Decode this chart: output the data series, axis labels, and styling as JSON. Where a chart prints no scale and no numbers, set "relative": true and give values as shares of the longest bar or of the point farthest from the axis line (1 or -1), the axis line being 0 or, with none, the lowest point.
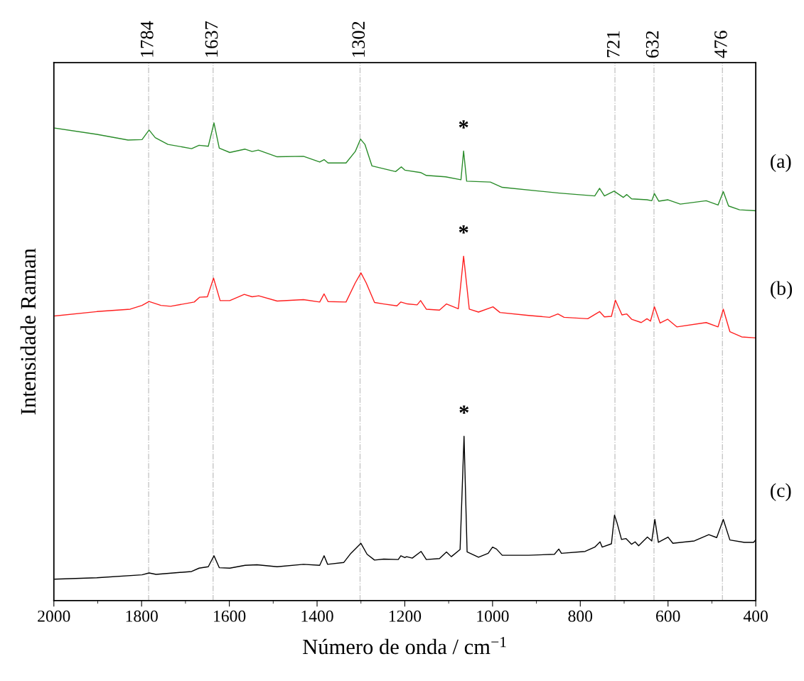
{
  "chart_data": {
    "type": "line",
    "relative": true,
    "xlabel": "Número de onda / cm$^{−1}$",
    "ylabel": "Intensidade Raman",
    "xlim": [
      2000,
      400
    ],
    "xticks": [
      2000,
      1800,
      1600,
      1400,
      1200,
      1000,
      800,
      600,
      400
    ],
    "tick_labels": "x",
    "grid": false,
    "legend": false,
    "marker": "none",
    "line_style": "solid",
    "ref_lines": [
      {
        "axis": "x",
        "value": 1784,
        "label": "1784",
        "color": "#c0c0c0",
        "line_style": "dashdot"
      },
      {
        "axis": "x",
        "value": 1637,
        "label": "1637",
        "color": "#c0c0c0",
        "line_style": "dashdot"
      },
      {
        "axis": "x",
        "value": 1302,
        "label": "1302",
        "color": "#c0c0c0",
        "line_style": "dashdot"
      },
      {
        "axis": "x",
        "value": 721,
        "label": "721",
        "color": "#c0c0c0",
        "line_style": "dashdot"
      },
      {
        "axis": "x",
        "value": 632,
        "label": "632",
        "color": "#c0c0c0",
        "line_style": "dashdot"
      },
      {
        "axis": "x",
        "value": 476,
        "label": "476",
        "color": "#c0c0c0",
        "line_style": "dashdot"
      }
    ],
    "annotations": [
      "*",
      "*",
      "*"
    ],
    "series": [
      {
        "name": "(a)",
        "color": "#2a8c2a",
        "x": [
          1998,
          1902,
          1831,
          1799,
          1783,
          1769,
          1740,
          1686,
          1669,
          1648,
          1635,
          1623,
          1599,
          1564,
          1548,
          1534,
          1491,
          1431,
          1394,
          1384,
          1375,
          1334,
          1313,
          1301,
          1291,
          1275,
          1221,
          1208,
          1200,
          1164,
          1151,
          1107,
          1072,
          1066,
          1059,
          1005,
          978,
          848,
          767,
          756,
          745,
          723,
          702,
          694,
          683,
          648,
          637,
          631,
          621,
          600,
          572,
          513,
          486,
          474,
          462,
          437,
          400
        ],
        "values": [
          0.989,
          0.976,
          0.964,
          0.965,
          0.985,
          0.969,
          0.955,
          0.946,
          0.953,
          0.951,
          1.0,
          0.947,
          0.938,
          0.945,
          0.94,
          0.943,
          0.929,
          0.93,
          0.918,
          0.923,
          0.916,
          0.916,
          0.94,
          0.966,
          0.955,
          0.91,
          0.898,
          0.908,
          0.901,
          0.896,
          0.89,
          0.887,
          0.881,
          0.941,
          0.878,
          0.876,
          0.865,
          0.853,
          0.847,
          0.863,
          0.847,
          0.857,
          0.844,
          0.85,
          0.841,
          0.839,
          0.837,
          0.852,
          0.836,
          0.839,
          0.83,
          0.837,
          0.828,
          0.856,
          0.826,
          0.818,
          0.816
        ]
      },
      {
        "name": "(b)",
        "color": "#ff2020",
        "x": [
          1998,
          1902,
          1826,
          1799,
          1783,
          1756,
          1734,
          1680,
          1668,
          1650,
          1636,
          1621,
          1599,
          1566,
          1548,
          1533,
          1491,
          1431,
          1394,
          1384,
          1375,
          1334,
          1313,
          1300,
          1288,
          1269,
          1248,
          1218,
          1209,
          1194,
          1172,
          1164,
          1151,
          1121,
          1105,
          1078,
          1066,
          1053,
          1032,
          999,
          983,
          918,
          870,
          851,
          837,
          783,
          756,
          745,
          729,
          720,
          705,
          694,
          683,
          661,
          648,
          640,
          631,
          618,
          601,
          580,
          513,
          486,
          474,
          459,
          432,
          400
        ],
        "values": [
          0.596,
          0.605,
          0.61,
          0.618,
          0.626,
          0.618,
          0.616,
          0.625,
          0.635,
          0.636,
          0.675,
          0.628,
          0.628,
          0.641,
          0.636,
          0.638,
          0.627,
          0.63,
          0.625,
          0.642,
          0.626,
          0.625,
          0.665,
          0.686,
          0.665,
          0.624,
          0.621,
          0.617,
          0.625,
          0.621,
          0.619,
          0.628,
          0.61,
          0.608,
          0.621,
          0.611,
          0.721,
          0.61,
          0.604,
          0.615,
          0.603,
          0.597,
          0.593,
          0.6,
          0.593,
          0.59,
          0.605,
          0.594,
          0.595,
          0.629,
          0.598,
          0.6,
          0.589,
          0.582,
          0.59,
          0.585,
          0.615,
          0.581,
          0.589,
          0.573,
          0.582,
          0.573,
          0.61,
          0.563,
          0.552,
          0.55
        ]
      },
      {
        "name": "(c)",
        "color": "#000000",
        "x": [
          1998,
          1902,
          1799,
          1783,
          1767,
          1686,
          1669,
          1648,
          1635,
          1623,
          1599,
          1564,
          1537,
          1491,
          1431,
          1394,
          1384,
          1376,
          1339,
          1323,
          1300,
          1286,
          1269,
          1248,
          1215,
          1209,
          1200,
          1196,
          1183,
          1163,
          1151,
          1121,
          1105,
          1094,
          1074,
          1065,
          1058,
          1032,
          1010,
          1000,
          991,
          978,
          918,
          859,
          849,
          843,
          789,
          767,
          755,
          750,
          729,
          722,
          716,
          706,
          696,
          683,
          675,
          667,
          647,
          637,
          630,
          622,
          600,
          589,
          540,
          507,
          489,
          474,
          459,
          426,
          405,
          400
        ],
        "values": [
          0.045,
          0.048,
          0.054,
          0.058,
          0.055,
          0.061,
          0.068,
          0.071,
          0.094,
          0.069,
          0.068,
          0.074,
          0.075,
          0.071,
          0.076,
          0.074,
          0.094,
          0.076,
          0.08,
          0.099,
          0.12,
          0.097,
          0.085,
          0.087,
          0.086,
          0.094,
          0.09,
          0.092,
          0.089,
          0.103,
          0.086,
          0.088,
          0.102,
          0.092,
          0.107,
          0.344,
          0.102,
          0.091,
          0.099,
          0.112,
          0.108,
          0.095,
          0.095,
          0.097,
          0.108,
          0.099,
          0.103,
          0.112,
          0.123,
          0.112,
          0.119,
          0.179,
          0.162,
          0.128,
          0.13,
          0.118,
          0.123,
          0.115,
          0.133,
          0.125,
          0.17,
          0.122,
          0.133,
          0.12,
          0.125,
          0.138,
          0.132,
          0.17,
          0.127,
          0.122,
          0.122,
          0.127
        ]
      }
    ]
  }
}
